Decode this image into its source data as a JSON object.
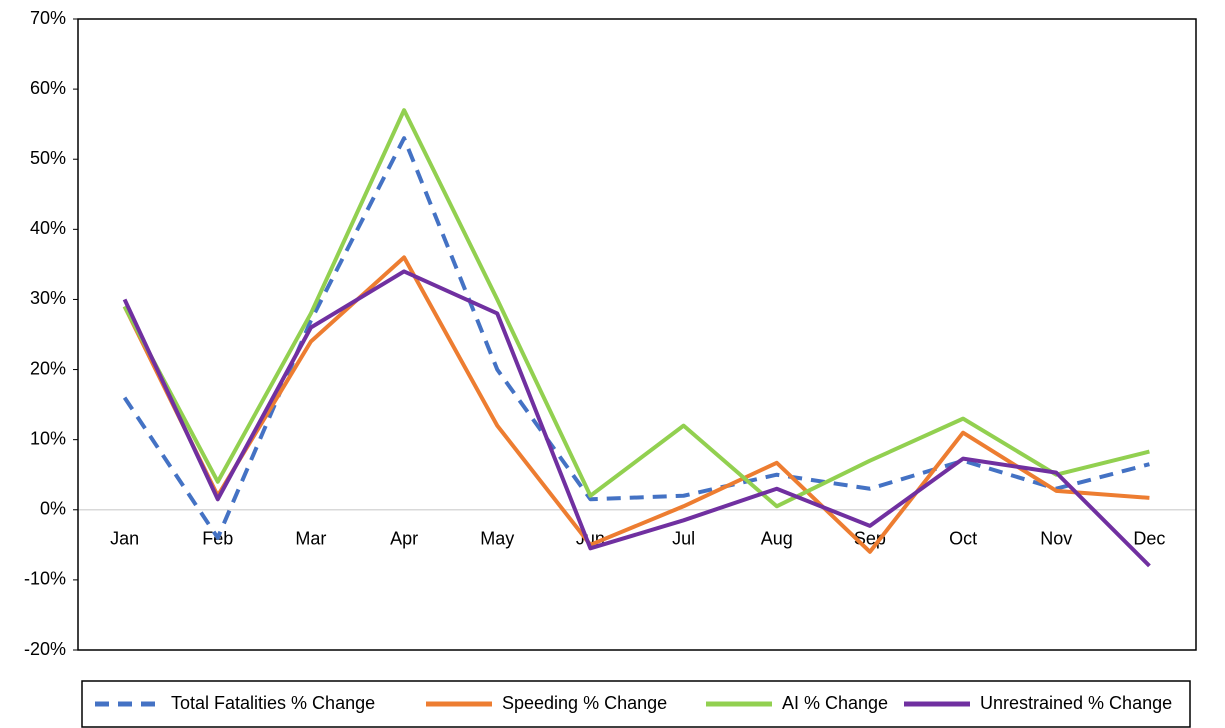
{
  "chart_data": {
    "type": "line",
    "categories": [
      "Jan",
      "Feb",
      "Mar",
      "Apr",
      "May",
      "Jun",
      "Jul",
      "Aug",
      "Sep",
      "Oct",
      "Nov",
      "Dec"
    ],
    "series": [
      {
        "name": "Total Fatalities % Change",
        "color": "#4472c4",
        "dashed": true,
        "values": [
          16,
          -4,
          27,
          53,
          20,
          1.5,
          2,
          5,
          3,
          7,
          3,
          6.5
        ]
      },
      {
        "name": "Speeding % Change",
        "color": "#ed7d31",
        "dashed": false,
        "values": [
          29,
          2,
          24,
          36,
          12,
          -5,
          0.5,
          6.7,
          -6,
          11,
          2.7,
          1.7
        ]
      },
      {
        "name": "AI % Change",
        "color": "#92d050",
        "dashed": false,
        "values": [
          29,
          4,
          28,
          57,
          30,
          2,
          12,
          0.5,
          7,
          13,
          5,
          8.3
        ]
      },
      {
        "name": "Unrestrained % Change",
        "color": "#7030a0",
        "dashed": false,
        "values": [
          30,
          1.5,
          26,
          34,
          28,
          -5.5,
          -1.5,
          3,
          -2.3,
          7.3,
          5.3,
          -8
        ]
      }
    ],
    "ylim": [
      -20,
      70
    ],
    "yticks": [
      {
        "value": -20,
        "label": "-20%"
      },
      {
        "value": -10,
        "label": "-10%"
      },
      {
        "value": 0,
        "label": "0%"
      },
      {
        "value": 10,
        "label": "10%"
      },
      {
        "value": 20,
        "label": "20%"
      },
      {
        "value": 30,
        "label": "30%"
      },
      {
        "value": 40,
        "label": "40%"
      },
      {
        "value": 50,
        "label": "50%"
      },
      {
        "value": 60,
        "label": "60%"
      },
      {
        "value": 70,
        "label": "70%"
      }
    ],
    "grid": false,
    "legend": "bottom"
  }
}
